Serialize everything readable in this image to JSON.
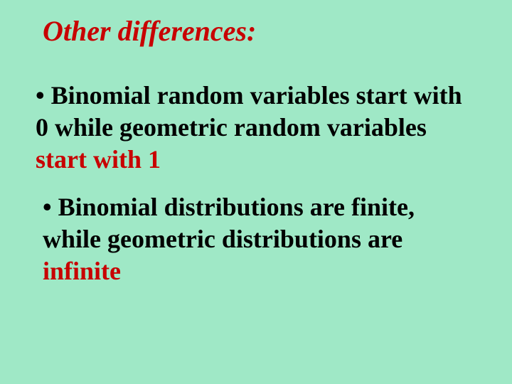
{
  "slide": {
    "background_color": "#9fe8c6",
    "title": {
      "text": "Other differences:",
      "color": "#c80000",
      "fontsize": 40,
      "font_weight": "bold",
      "font_style": "italic"
    },
    "bullets": [
      {
        "prefix": "• ",
        "parts": [
          {
            "text": "Binomial random variables start with 0 while geometric random variables ",
            "color": "#000000"
          },
          {
            "text": "start with 1",
            "color": "#c80000"
          }
        ],
        "fontsize": 36
      },
      {
        "prefix": "• ",
        "parts": [
          {
            "text": "Binomial distributions are finite, while geometric distributions are ",
            "color": "#000000"
          },
          {
            "text": "infinite",
            "color": "#c80000"
          }
        ],
        "fontsize": 36
      }
    ],
    "font_family": "Comic Sans MS",
    "text_color_black": "#000000",
    "text_color_red": "#c80000"
  }
}
